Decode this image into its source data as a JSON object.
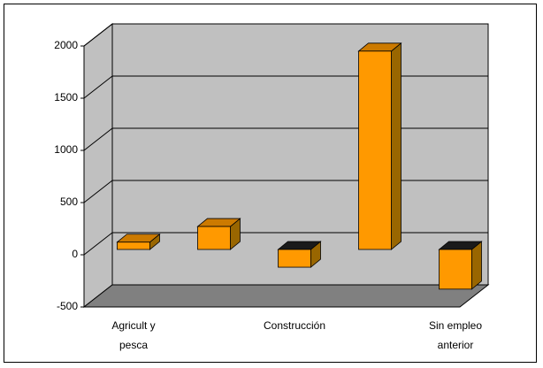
{
  "chart_data": {
    "type": "bar3d",
    "categories": [
      "Agricult y pesca",
      null,
      "Construcción",
      null,
      "Sin empleo anterior"
    ],
    "values": [
      70,
      220,
      -170,
      1900,
      -380
    ],
    "color": "#ff9900",
    "ylim": [
      -500,
      2000
    ],
    "yticks": [
      -500,
      0,
      500,
      1000,
      1500,
      2000
    ],
    "grid": true
  }
}
